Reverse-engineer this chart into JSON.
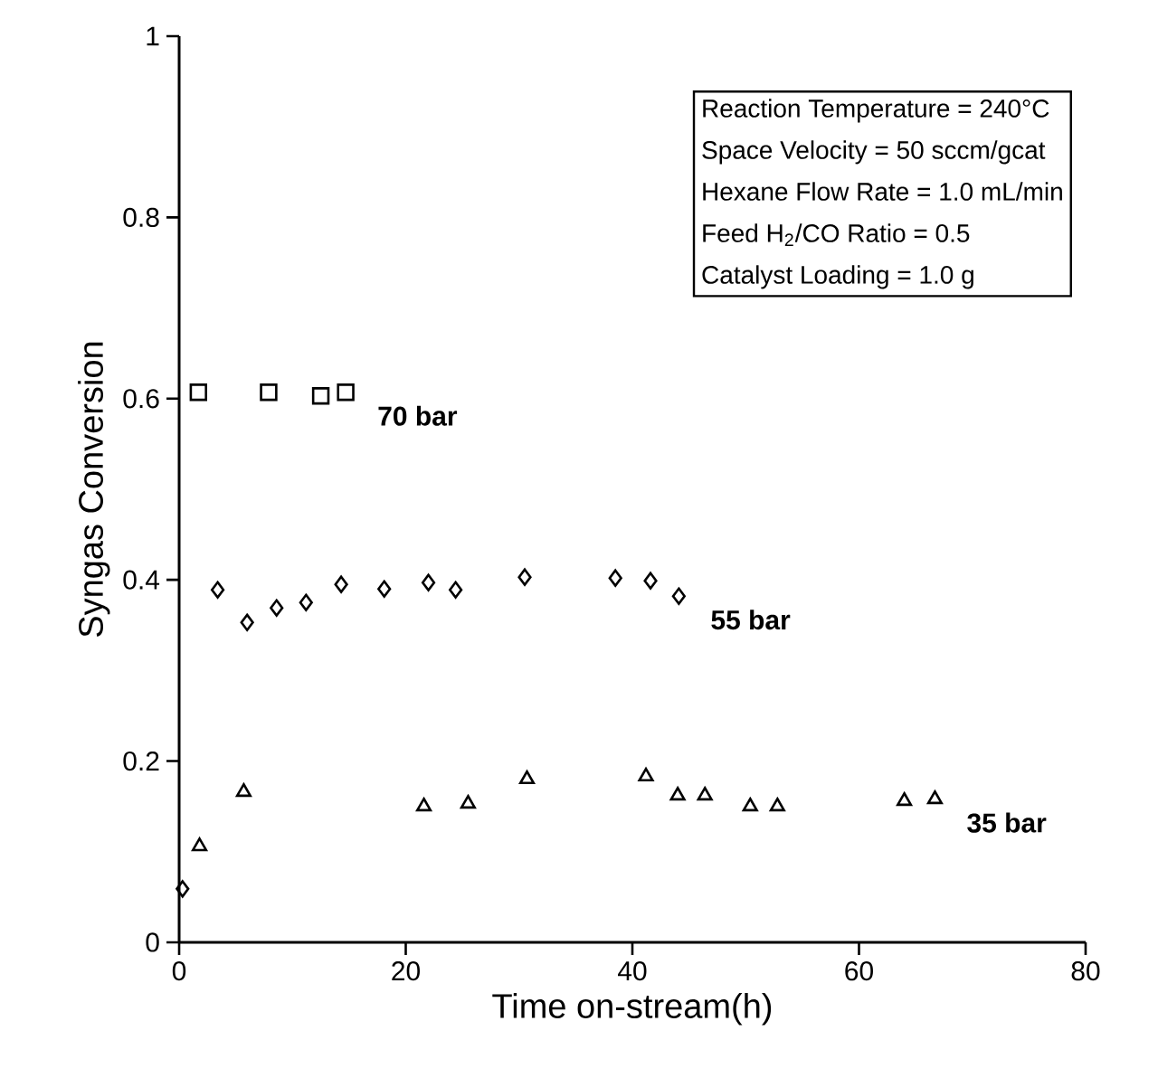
{
  "chart_data": {
    "type": "scatter",
    "xlabel": "Time on-stream(h)",
    "ylabel": "Syngas Conversion",
    "xlim": [
      0,
      80
    ],
    "xticks": [
      0,
      20,
      40,
      60,
      80
    ],
    "ylim": [
      0,
      1
    ],
    "yticks": [
      0,
      0.2,
      0.4,
      0.6,
      0.8,
      1
    ],
    "annotations": [
      "Reaction Temperature = 240°C",
      "Space Velocity = 50 sccm/gcat",
      "Hexane Flow Rate = 1.0 mL/min",
      "Feed H$_{2}$/CO Ratio = 0.5",
      "Catalyst Loading = 1.0 g"
    ],
    "series": [
      {
        "name": "70 bar",
        "color": "#000000",
        "marker": "square",
        "x": [
          1.7,
          7.9,
          12.5,
          14.7
        ],
        "values": [
          0.607,
          0.607,
          0.603,
          0.607
        ]
      },
      {
        "name": "55 bar",
        "color": "#000000",
        "marker": "diamond",
        "x": [
          0.3,
          3.4,
          6.0,
          8.6,
          11.2,
          14.3,
          18.1,
          22.0,
          24.4,
          30.5,
          38.5,
          41.6,
          44.1
        ],
        "values": [
          0.059,
          0.389,
          0.353,
          0.369,
          0.375,
          0.395,
          0.39,
          0.397,
          0.389,
          0.403,
          0.402,
          0.399,
          0.382
        ]
      },
      {
        "name": "35 bar",
        "color": "#000000",
        "marker": "triangle",
        "x": [
          1.8,
          5.7,
          21.6,
          25.5,
          30.7,
          41.2,
          44.0,
          46.4,
          50.4,
          52.8,
          64.0,
          66.7
        ],
        "values": [
          0.106,
          0.166,
          0.15,
          0.153,
          0.18,
          0.183,
          0.162,
          0.162,
          0.15,
          0.15,
          0.156,
          0.158
        ]
      }
    ]
  }
}
